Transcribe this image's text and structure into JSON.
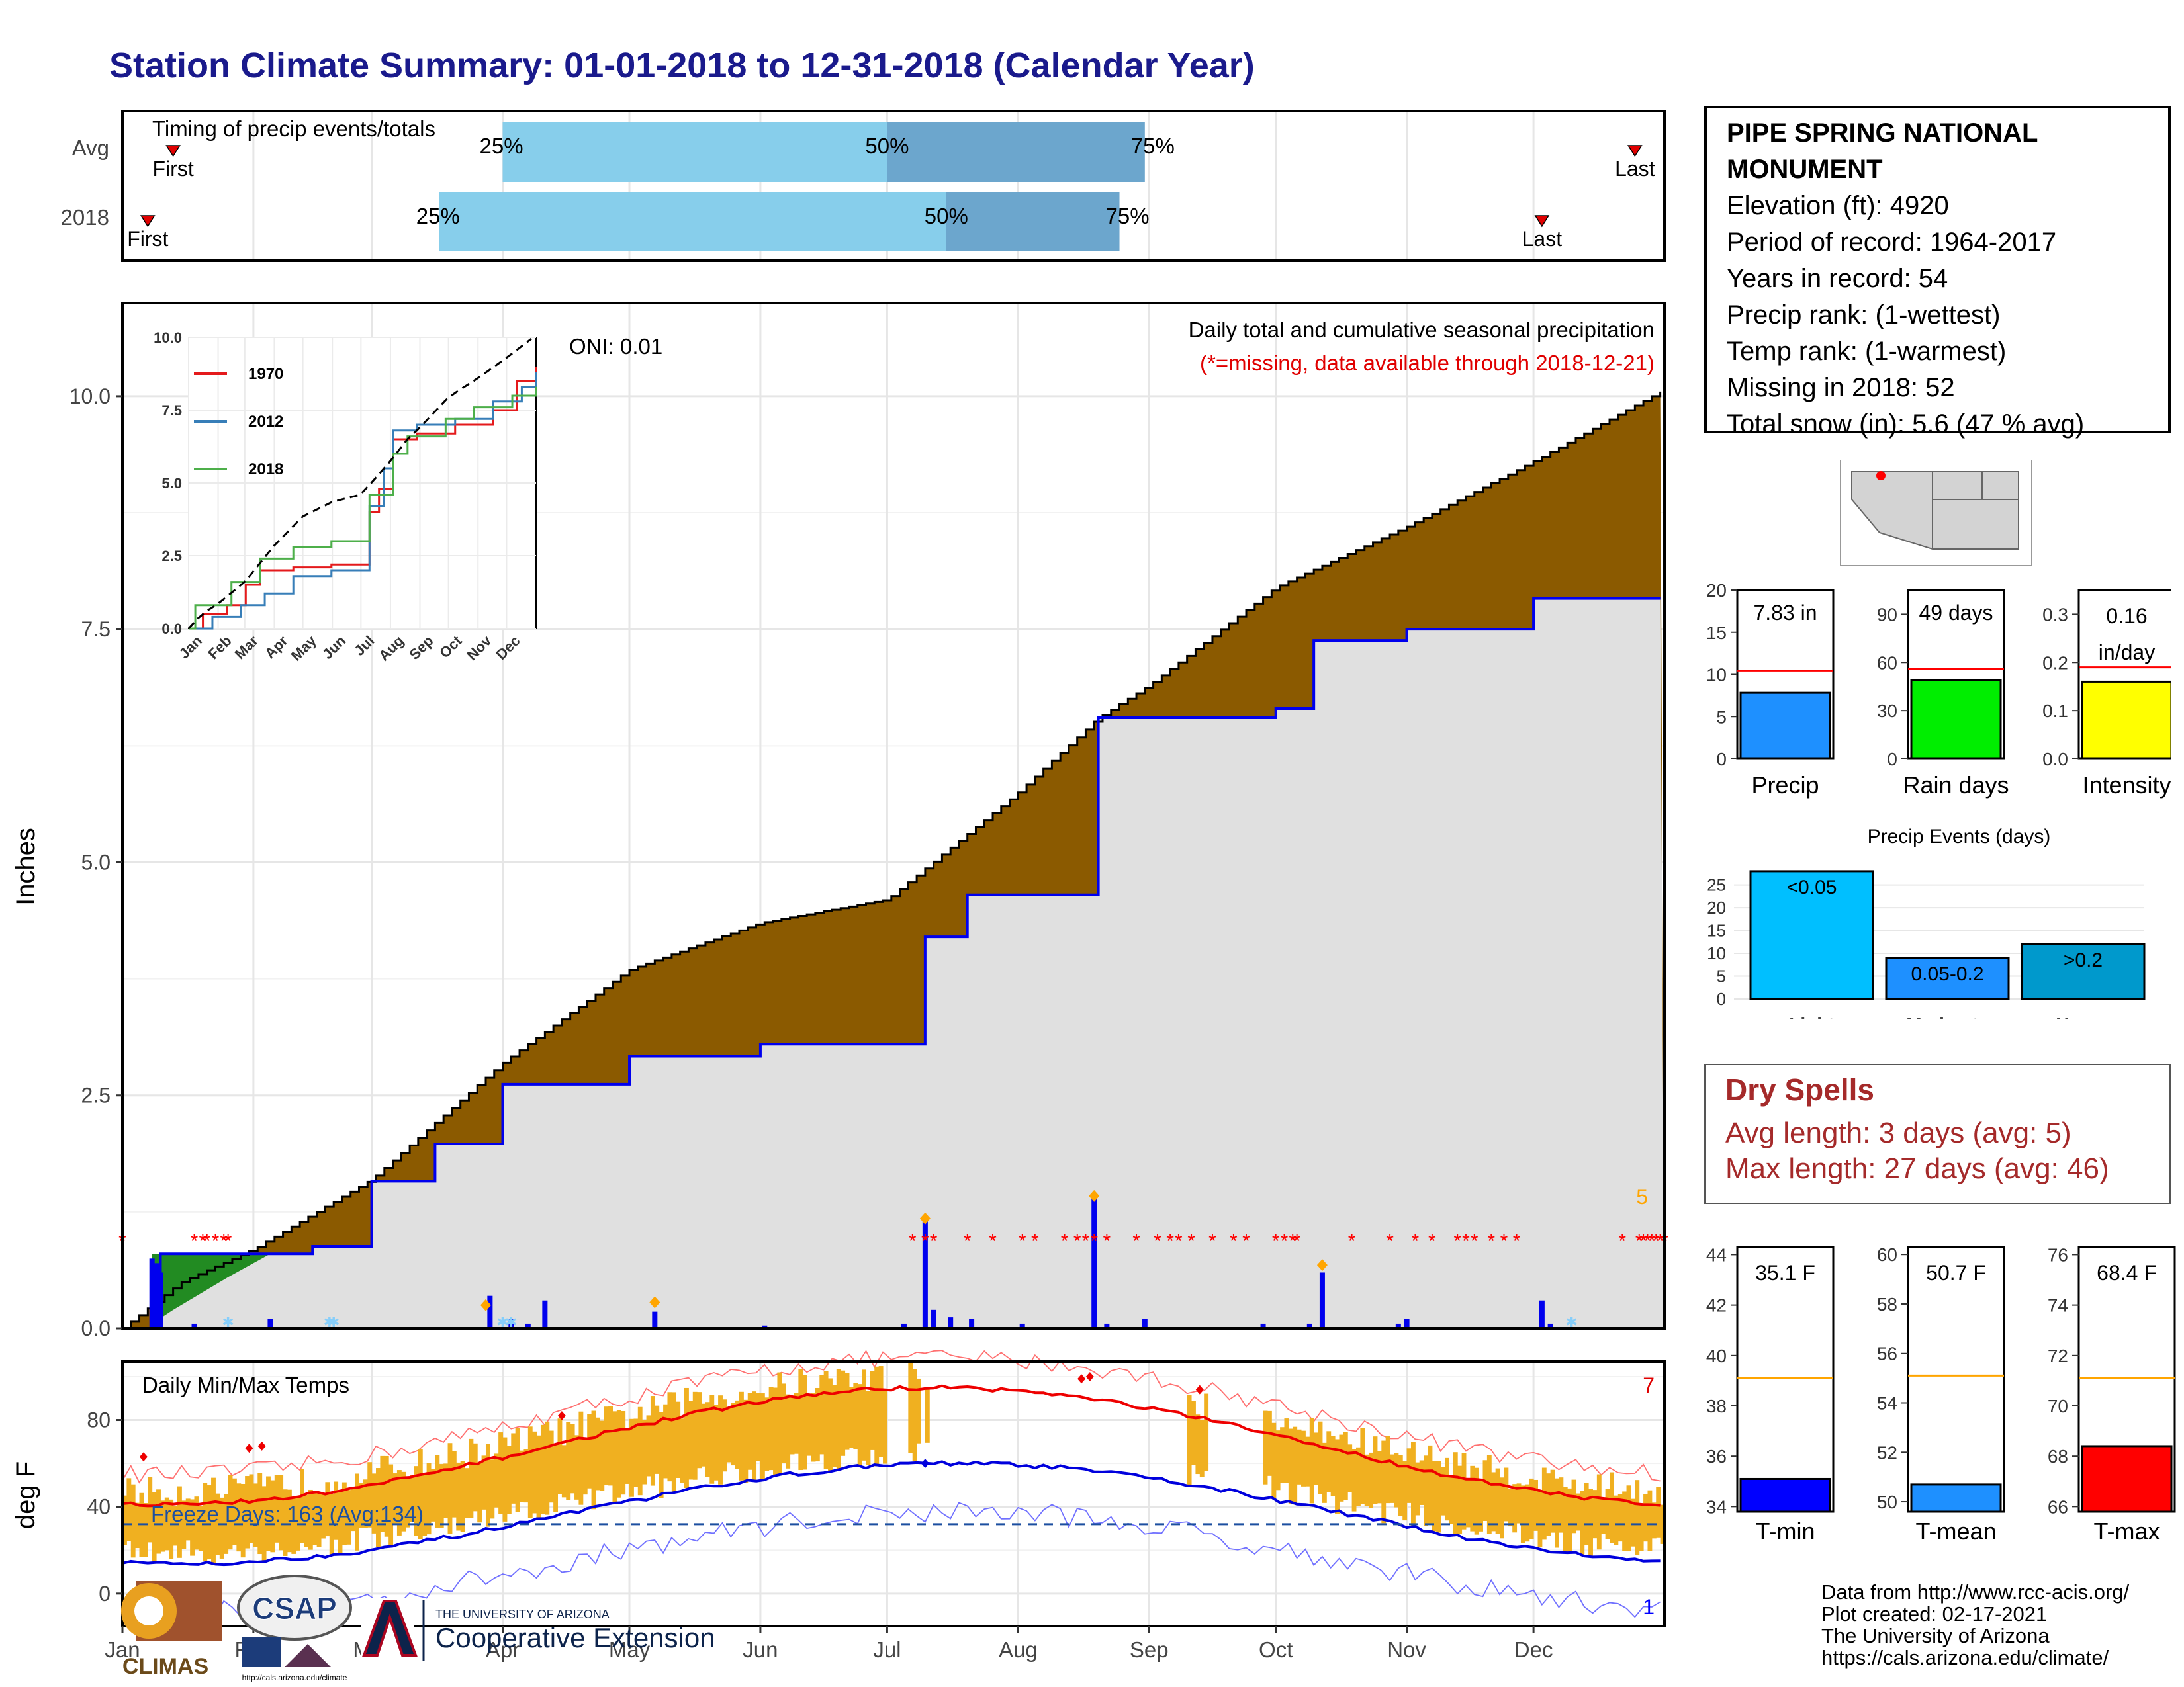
{
  "title": "Station Climate Summary: 01-01-2018 to 12-31-2018 (Calendar Year)",
  "station": {
    "name": "PIPE SPRING NATIONAL MONUMENT",
    "elevation": "Elevation (ft): 4920",
    "period": "Period of record: 1964-2017",
    "years": "Years in record: 54",
    "precip_rank": "Precip rank:  (1-wettest)",
    "temp_rank": "Temp rank:  (1-warmest)",
    "missing": "Missing in 2018: 52",
    "snow": "Total snow (in): 5.6 (47 % avg)"
  },
  "timing": {
    "title": "Timing of precip events/totals",
    "rows": [
      "Avg",
      "2018"
    ],
    "first_label": "First",
    "last_label": "Last",
    "avg": {
      "first": "2017-01-13",
      "p25": "2017-04-01",
      "p50": "2017-07-01",
      "p75": "2017-08-31",
      "last": "2017-12-25"
    },
    "y2018": {
      "first": "2018-01-07",
      "p25": "2018-03-17",
      "p50": "2018-07-15",
      "p75": "2018-08-25",
      "last": "2018-12-03"
    },
    "pct_labels": [
      "25%",
      "50%",
      "75%"
    ]
  },
  "precip": {
    "ylabel": "Inches",
    "title": "Daily total and cumulative seasonal precipitation",
    "missing_note": "(*=missing, data available through 2018-12-21)",
    "oni": "ONI: 0.01",
    "count_label": "5",
    "y_ticks": [
      "0.0",
      "2.5",
      "5.0",
      "7.5",
      "10.0"
    ],
    "inset": {
      "legend": [
        "1970",
        "2012",
        "2018"
      ],
      "colors": [
        "#e41a1c",
        "#377eb8",
        "#4daf4a"
      ],
      "y_ticks": [
        "0.0",
        "2.5",
        "5.0",
        "7.5",
        "10.0"
      ],
      "x_ticks": [
        "Jan",
        "Feb",
        "Mar",
        "Apr",
        "May",
        "Jun",
        "Jul",
        "Aug",
        "Sep",
        "Oct",
        "Nov",
        "Dec"
      ]
    }
  },
  "temps": {
    "ylabel": "deg F",
    "title": "Daily Min/Max Temps",
    "freeze_label": "Freeze Days: 163 (Avg:134)",
    "count_hi": "7",
    "count_lo": "1",
    "y_ticks": [
      "0",
      "40",
      "80"
    ]
  },
  "months": [
    "Jan",
    "Feb",
    "Mar",
    "Apr",
    "May",
    "Jun",
    "Jul",
    "Aug",
    "Sep",
    "Oct",
    "Nov",
    "Dec"
  ],
  "summary_bars": [
    {
      "label": "Precip",
      "value_text": "7.83 in",
      "value": 7.83,
      "avg": 10.4,
      "ticks": [
        "0",
        "5",
        "10",
        "15",
        "20"
      ],
      "color": "#1e90ff"
    },
    {
      "label": "Rain days",
      "value_text": "49 days",
      "value": 49,
      "avg": 56,
      "ticks": [
        "0",
        "30",
        "60",
        "90"
      ],
      "color": "#00ee00"
    },
    {
      "label": "Intensity",
      "value_text": "0.16 in/day",
      "value": 0.16,
      "avg": 0.19,
      "ticks": [
        "0.0",
        "0.1",
        "0.2",
        "0.3"
      ],
      "color": "#ffff00"
    }
  ],
  "precip_events": {
    "title": "Precip Events (days)",
    "categories": [
      "Light",
      "Moderate",
      "Heavy"
    ],
    "bar_labels": [
      "<0.05",
      "0.05-0.2",
      ">0.2"
    ],
    "values": [
      28,
      9,
      12
    ],
    "y_ticks": [
      "0",
      "5",
      "10",
      "15",
      "20",
      "25"
    ],
    "colors": [
      "#00bfff",
      "#1e90ff",
      "#0099cc"
    ]
  },
  "dry_spells": {
    "title": "Dry Spells",
    "avg_length": "Avg length: 3 days (avg: 5)",
    "max_length": "Max length: 27 days (avg: 46)"
  },
  "temp_bars": [
    {
      "label": "T-min",
      "value_text": "35.1 F",
      "value": 35.1,
      "avg": 39.1,
      "ticks": [
        "34",
        "36",
        "38",
        "40",
        "42",
        "44"
      ],
      "color": "#0000ff"
    },
    {
      "label": "T-mean",
      "value_text": "50.7 F",
      "value": 50.7,
      "avg": 55.1,
      "ticks": [
        "50",
        "52",
        "54",
        "56",
        "58",
        "60"
      ],
      "color": "#1e90ff"
    },
    {
      "label": "T-max",
      "value_text": "68.4 F",
      "value": 68.4,
      "avg": 71.1,
      "ticks": [
        "66",
        "68",
        "70",
        "72",
        "74",
        "76"
      ],
      "color": "#ff0000"
    }
  ],
  "credits": [
    "Data from http://www.rcc-acis.org/",
    "Plot created: 02-17-2021",
    "The University of Arizona",
    "https://cals.arizona.edu/climate/"
  ],
  "logos": {
    "climas": "CLIMAS",
    "csap": "CSAP",
    "csap_url": "http://cals.arizona.edu/climate",
    "ua_small": "THE UNIVERSITY OF ARIZONA",
    "ua_big": "Cooperative Extension"
  },
  "chart_data": {
    "type": "area",
    "title": "Daily total and cumulative seasonal precipitation",
    "ylabel": "Inches",
    "ylim": [
      0,
      11
    ],
    "series": [
      {
        "name": "avg",
        "x": [
          "Jan 1",
          "Jan 15",
          "Feb 1",
          "Mar 1",
          "Apr 1",
          "May 1",
          "Jun 1",
          "Jul 1",
          "Aug 1",
          "Aug 20",
          "Sep 1",
          "Oct 1",
          "Nov 1",
          "Dec 1",
          "Dec 31"
        ],
        "values": [
          0.0,
          0.5,
          0.85,
          1.6,
          2.85,
          3.85,
          4.35,
          4.6,
          5.75,
          6.55,
          6.9,
          7.95,
          8.6,
          9.3,
          10.05
        ]
      },
      {
        "name": "2018",
        "x": [
          "Jan 1",
          "Jan 10",
          "Feb 15",
          "Mar 1",
          "Mar 16",
          "Apr 1",
          "May 1",
          "Jun 1",
          "Jul 10",
          "Jul 20",
          "Aug 20",
          "Sep 1",
          "Oct 1",
          "Oct 10",
          "Nov 1",
          "Dec 1",
          "Dec 31"
        ],
        "values": [
          0.0,
          0.8,
          0.88,
          1.58,
          1.98,
          2.62,
          2.92,
          3.05,
          4.2,
          4.65,
          6.55,
          6.55,
          6.65,
          7.38,
          7.5,
          7.83,
          7.83
        ]
      }
    ]
  }
}
